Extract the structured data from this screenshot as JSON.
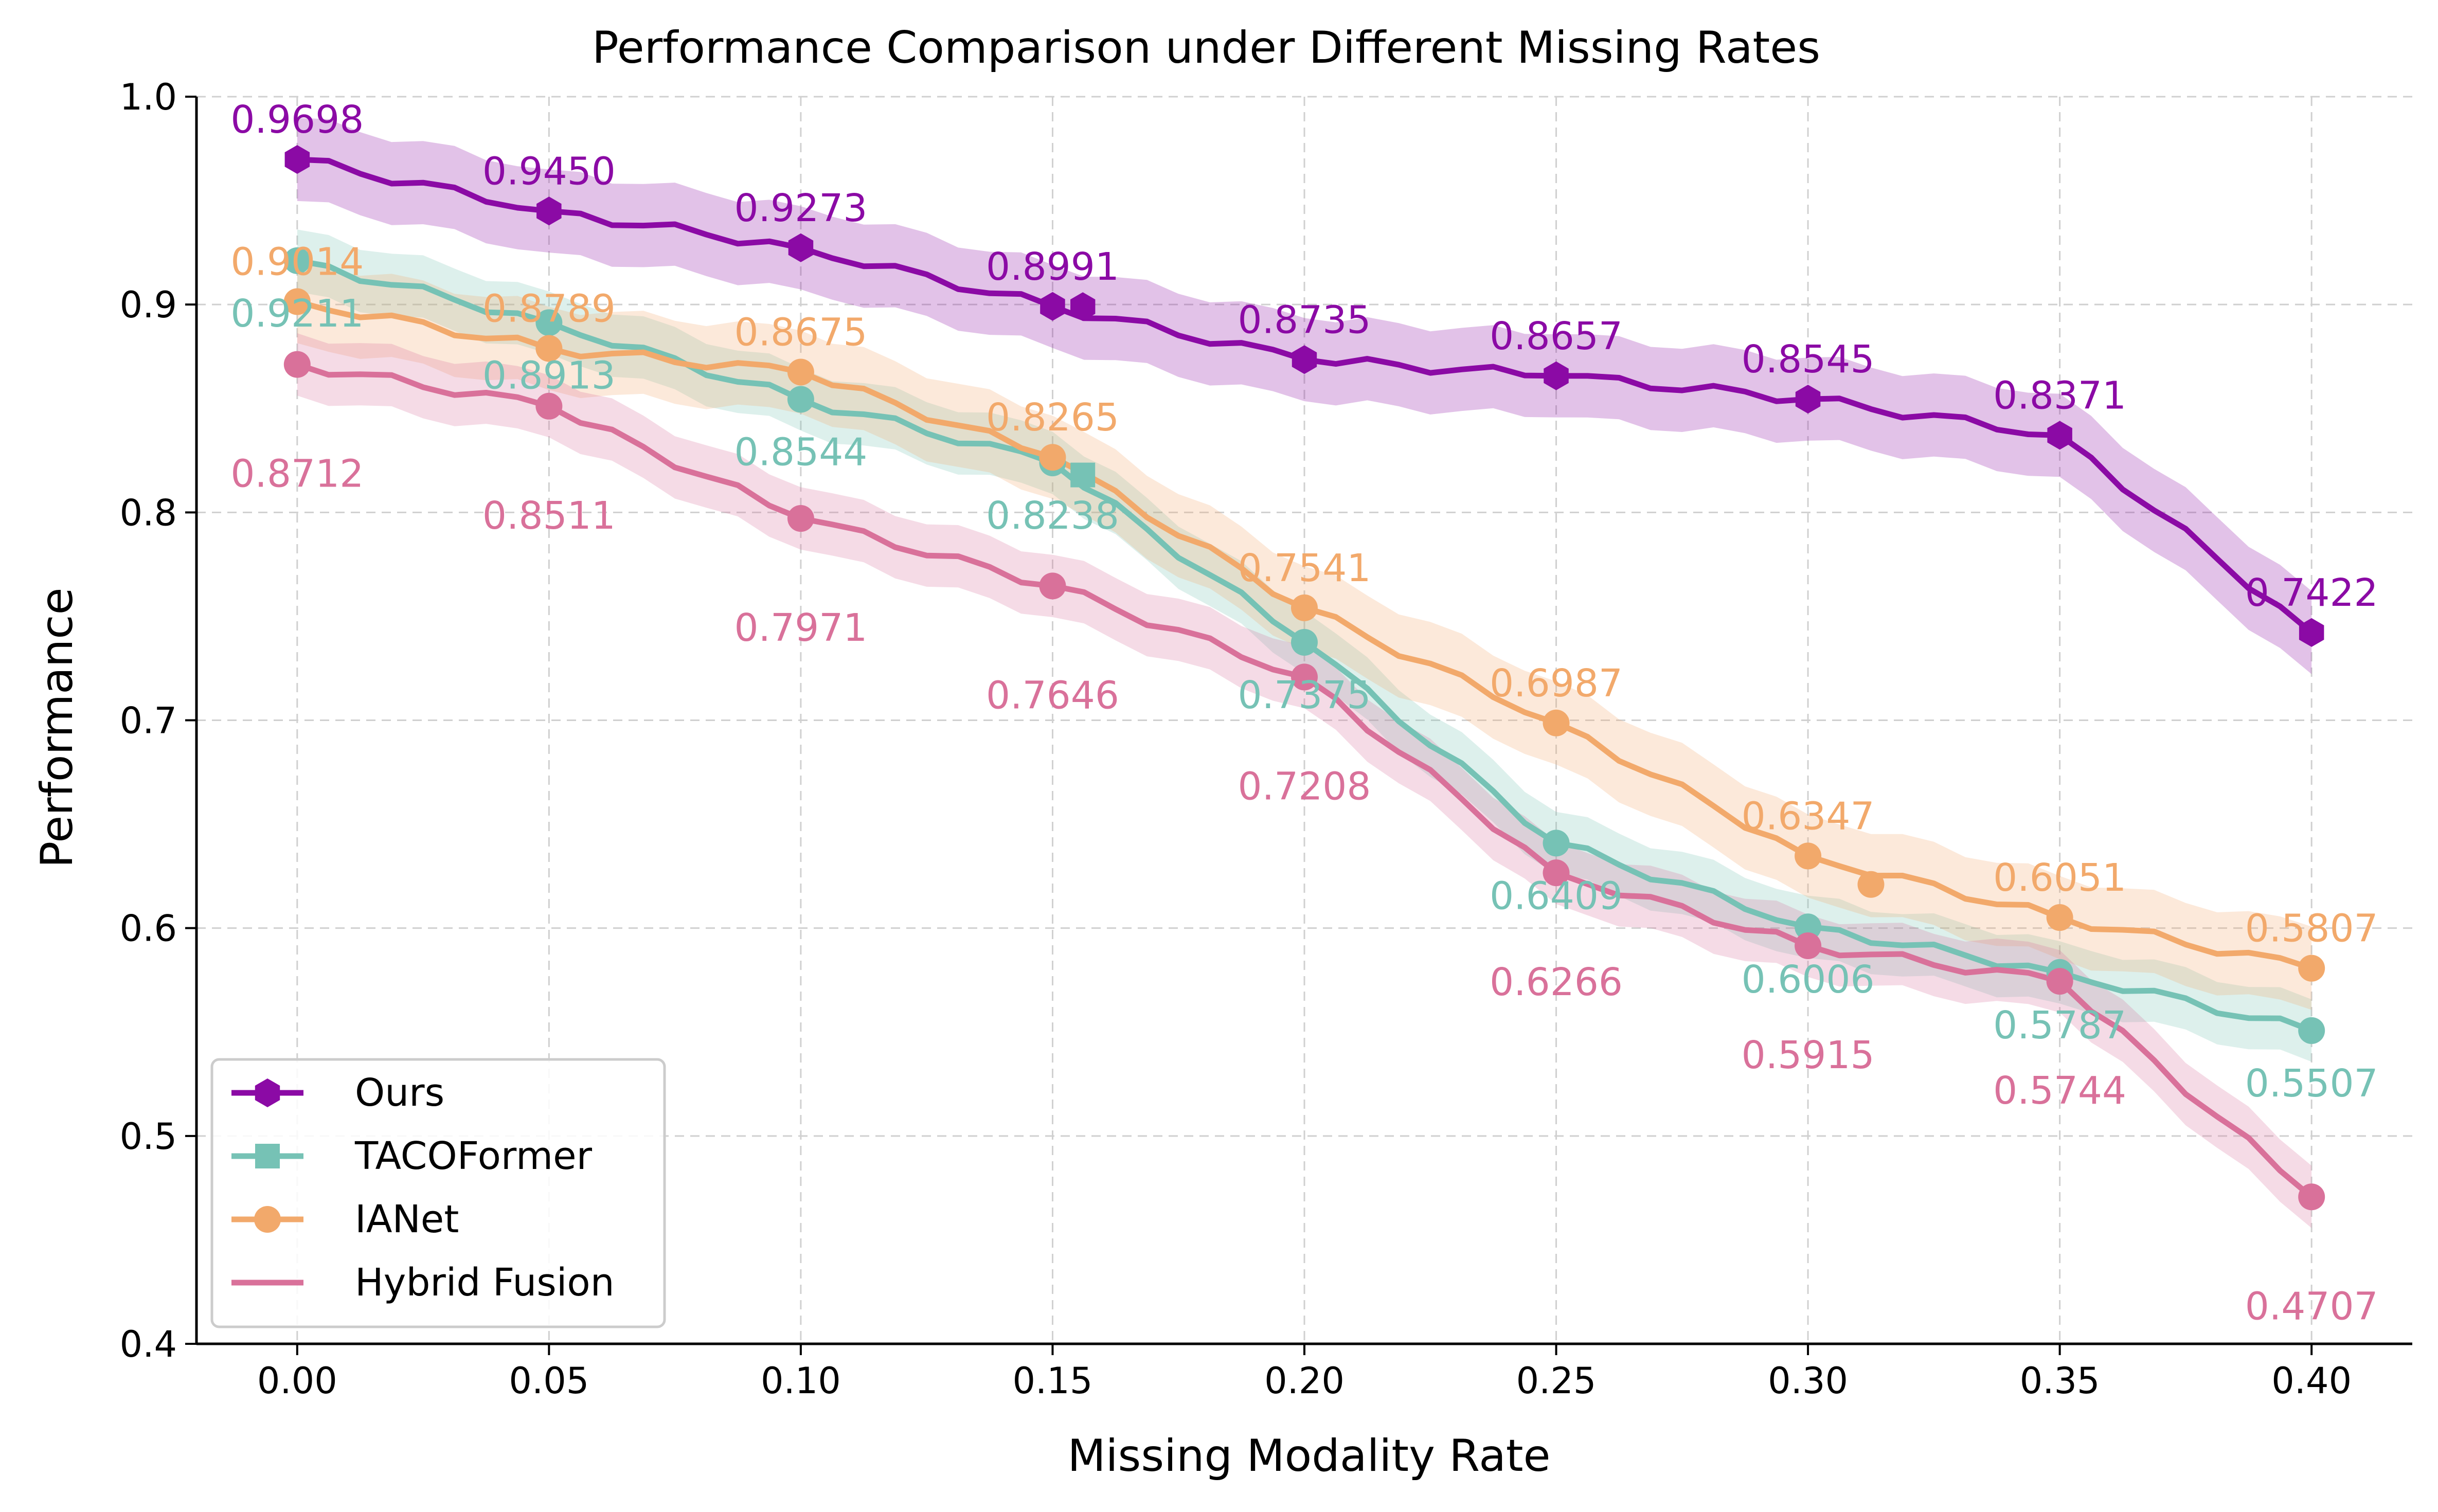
{
  "chart_data": {
    "type": "line",
    "title": "Performance Comparison under Different Missing Rates",
    "xlabel": "Missing Modality Rate",
    "ylabel": "Performance",
    "xlim": [
      -0.02,
      0.42
    ],
    "ylim": [
      0.4,
      1.0
    ],
    "grid": true,
    "legend_position": "lower-left",
    "x_ticks": [
      0.0,
      0.05,
      0.1,
      0.15,
      0.2,
      0.25,
      0.3,
      0.35,
      0.4
    ],
    "x_tick_labels": [
      "0.00",
      "0.05",
      "0.10",
      "0.15",
      "0.20",
      "0.25",
      "0.30",
      "0.35",
      "0.40"
    ],
    "y_ticks": [
      0.4,
      0.5,
      0.6,
      0.7,
      0.8,
      0.9,
      1.0
    ],
    "y_tick_labels": [
      "0.4",
      "0.5",
      "0.6",
      "0.7",
      "0.8",
      "0.9",
      "1.0"
    ],
    "series": [
      {
        "name": "Ours",
        "color": "#8B0AA5",
        "marker": "hexagon",
        "x": [
          0.0,
          0.05,
          0.1,
          0.15,
          0.2,
          0.25,
          0.3,
          0.35,
          0.4
        ],
        "values": [
          0.9698,
          0.945,
          0.9273,
          0.8991,
          0.8735,
          0.8657,
          0.8545,
          0.8371,
          0.7422
        ],
        "labels": [
          "0.9698",
          "0.9450",
          "0.9273",
          "0.8991",
          "0.8735",
          "0.8657",
          "0.8545",
          "0.8371",
          "0.7422"
        ],
        "label_offset": "above",
        "band": 0.02,
        "extra_marker": {
          "x": 0.156,
          "y": 0.899
        }
      },
      {
        "name": "TACOFormer",
        "color": "#76C2B5",
        "marker": "square",
        "x": [
          0.0,
          0.05,
          0.1,
          0.15,
          0.2,
          0.25,
          0.3,
          0.35,
          0.4
        ],
        "values": [
          0.9211,
          0.8913,
          0.8544,
          0.8238,
          0.7375,
          0.6409,
          0.6006,
          0.5787,
          0.5507
        ],
        "labels": [
          "0.9211",
          "0.8913",
          "0.8544",
          "0.8238",
          "0.7375",
          "0.6409",
          "0.6006",
          "0.5787",
          "0.5507"
        ],
        "label_offset": "below",
        "band": 0.015,
        "extra_marker": {
          "x": 0.156,
          "y": 0.818
        }
      },
      {
        "name": "IANet",
        "color": "#F2A96B",
        "marker": "circle",
        "x": [
          0.0,
          0.05,
          0.1,
          0.15,
          0.2,
          0.25,
          0.3,
          0.35,
          0.4
        ],
        "values": [
          0.9014,
          0.8789,
          0.8675,
          0.8265,
          0.7541,
          0.6987,
          0.6347,
          0.6051,
          0.5807
        ],
        "labels": [
          "0.9014",
          "0.8789",
          "0.8675",
          "0.8265",
          "0.7541",
          "0.6987",
          "0.6347",
          "0.6051",
          "0.5807"
        ],
        "label_offset": "above",
        "band": 0.02,
        "extra_marker": {
          "x": 0.3125,
          "y": 0.621
        }
      },
      {
        "name": "Hybrid Fusion",
        "color": "#D9719A",
        "marker": "circle",
        "x": [
          0.0,
          0.05,
          0.1,
          0.15,
          0.2,
          0.25,
          0.3,
          0.35,
          0.4
        ],
        "values": [
          0.8712,
          0.8511,
          0.7971,
          0.7646,
          0.7208,
          0.6266,
          0.5915,
          0.5744,
          0.4707
        ],
        "labels": [
          "0.8712",
          "0.8511",
          "0.7971",
          "0.7646",
          "0.7208",
          "0.6266",
          "0.5915",
          "0.5744",
          "0.4707"
        ],
        "label_offset": "far-below",
        "band": 0.015,
        "extra_marker": null
      }
    ]
  }
}
